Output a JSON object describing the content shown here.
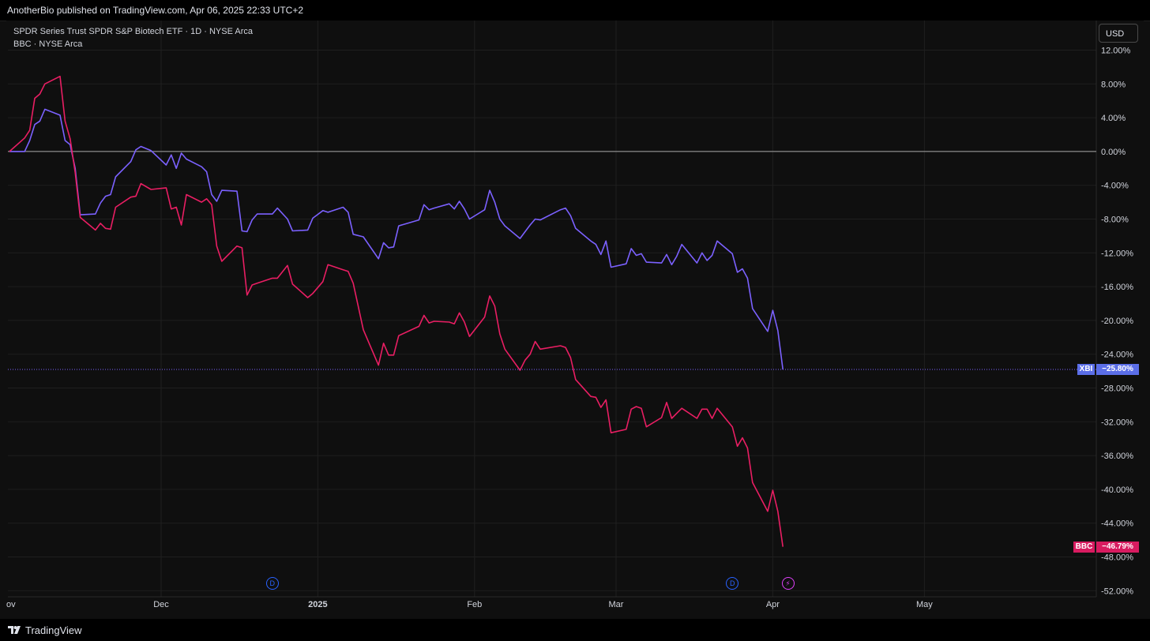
{
  "header": {
    "publisher": "AnotherBio published on TradingView.com, Apr 06, 2025 22:33 UTC+2"
  },
  "legend": {
    "line1": "SPDR Series Trust SPDR S&P Biotech ETF · 1D · NYSE Arca",
    "line2": "BBC · NYSE Arca"
  },
  "currency_button": "USD",
  "footer": {
    "brand": "TradingView"
  },
  "colors": {
    "background": "#0f0f0f",
    "grid": "#1f1f1f",
    "xbi": "#7b61ff",
    "bbc": "#e91e63",
    "zero_line": "#a8a8a8",
    "price_tag_xbi": "#5b6ee8",
    "price_tag_bbc": "#d81b60",
    "dividend_marker": "#2962ff",
    "earnings_marker": "#e040fb"
  },
  "events": [
    {
      "type": "dividend",
      "icon": "dividend-icon",
      "label": "D",
      "date": "2024-12-23"
    },
    {
      "type": "dividend",
      "icon": "dividend-icon",
      "label": "D",
      "date": "2025-03-24"
    },
    {
      "type": "earnings",
      "icon": "lightning-icon",
      "label": "⚡",
      "date": "2025-04-04"
    }
  ],
  "chart_data": {
    "type": "line",
    "y_unit": "%",
    "ylim": [
      -52,
      14
    ],
    "y_ticks": [
      "12.00%",
      "8.00%",
      "4.00%",
      "0.00%",
      "-4.00%",
      "-8.00%",
      "-12.00%",
      "-16.00%",
      "-20.00%",
      "-24.00%",
      "-28.00%",
      "-32.00%",
      "-36.00%",
      "-40.00%",
      "-44.00%",
      "-48.00%",
      "-52.00%"
    ],
    "x_ticks": [
      "ov",
      "Dec",
      "2025",
      "Feb",
      "Mar",
      "Apr",
      "May"
    ],
    "x_tick_dates": [
      "2024-11-01",
      "2024-12-01",
      "2025-01-01",
      "2025-02-01",
      "2025-03-01",
      "2025-04-01",
      "2025-05-01"
    ],
    "xlim": [
      "2024-11-01",
      "2025-05-31"
    ],
    "grid": true,
    "baseline": 0,
    "series": [
      {
        "name": "XBI",
        "last_value_label": "−25.80%",
        "points": [
          [
            "2024-11-01",
            0.0
          ],
          [
            "2024-11-04",
            0.0
          ],
          [
            "2024-11-05",
            1.3
          ],
          [
            "2024-11-06",
            3.2
          ],
          [
            "2024-11-07",
            3.6
          ],
          [
            "2024-11-08",
            5.0
          ],
          [
            "2024-11-11",
            4.3
          ],
          [
            "2024-11-12",
            1.3
          ],
          [
            "2024-11-13",
            0.8
          ],
          [
            "2024-11-14",
            -2.0
          ],
          [
            "2024-11-15",
            -7.5
          ],
          [
            "2024-11-18",
            -7.4
          ],
          [
            "2024-11-19",
            -6.1
          ],
          [
            "2024-11-20",
            -5.3
          ],
          [
            "2024-11-21",
            -5.1
          ],
          [
            "2024-11-22",
            -3.0
          ],
          [
            "2024-11-25",
            -1.2
          ],
          [
            "2024-11-26",
            0.2
          ],
          [
            "2024-11-27",
            0.6
          ],
          [
            "2024-11-29",
            0.1
          ],
          [
            "2024-12-02",
            -1.6
          ],
          [
            "2024-12-03",
            -0.4
          ],
          [
            "2024-12-04",
            -2.0
          ],
          [
            "2024-12-05",
            -0.2
          ],
          [
            "2024-12-06",
            -0.9
          ],
          [
            "2024-12-09",
            -1.8
          ],
          [
            "2024-12-10",
            -2.4
          ],
          [
            "2024-12-11",
            -5.1
          ],
          [
            "2024-12-12",
            -5.9
          ],
          [
            "2024-12-13",
            -4.6
          ],
          [
            "2024-12-16",
            -4.7
          ],
          [
            "2024-12-17",
            -9.4
          ],
          [
            "2024-12-18",
            -9.5
          ],
          [
            "2024-12-19",
            -8.1
          ],
          [
            "2024-12-20",
            -7.4
          ],
          [
            "2024-12-23",
            -7.4
          ],
          [
            "2024-12-24",
            -6.7
          ],
          [
            "2024-12-26",
            -8.0
          ],
          [
            "2024-12-27",
            -9.4
          ],
          [
            "2024-12-30",
            -9.3
          ],
          [
            "2024-12-31",
            -7.9
          ],
          [
            "2025-01-02",
            -7.0
          ],
          [
            "2025-01-03",
            -7.2
          ],
          [
            "2025-01-06",
            -6.6
          ],
          [
            "2025-01-07",
            -7.2
          ],
          [
            "2025-01-08",
            -9.8
          ],
          [
            "2025-01-10",
            -10.1
          ],
          [
            "2025-01-13",
            -12.7
          ],
          [
            "2025-01-14",
            -10.8
          ],
          [
            "2025-01-15",
            -11.4
          ],
          [
            "2025-01-16",
            -11.3
          ],
          [
            "2025-01-17",
            -8.8
          ],
          [
            "2025-01-21",
            -8.1
          ],
          [
            "2025-01-22",
            -6.3
          ],
          [
            "2025-01-23",
            -6.9
          ],
          [
            "2025-01-24",
            -6.7
          ],
          [
            "2025-01-27",
            -6.2
          ],
          [
            "2025-01-28",
            -6.8
          ],
          [
            "2025-01-29",
            -5.9
          ],
          [
            "2025-01-30",
            -6.8
          ],
          [
            "2025-01-31",
            -8.0
          ],
          [
            "2025-02-03",
            -6.9
          ],
          [
            "2025-02-04",
            -4.6
          ],
          [
            "2025-02-05",
            -6.0
          ],
          [
            "2025-02-06",
            -8.0
          ],
          [
            "2025-02-07",
            -8.8
          ],
          [
            "2025-02-10",
            -10.3
          ],
          [
            "2025-02-11",
            -9.5
          ],
          [
            "2025-02-12",
            -8.7
          ],
          [
            "2025-02-13",
            -8.0
          ],
          [
            "2025-02-14",
            -8.1
          ],
          [
            "2025-02-18",
            -6.9
          ],
          [
            "2025-02-19",
            -6.7
          ],
          [
            "2025-02-20",
            -7.6
          ],
          [
            "2025-02-21",
            -9.1
          ],
          [
            "2025-02-24",
            -10.6
          ],
          [
            "2025-02-25",
            -11.0
          ],
          [
            "2025-02-26",
            -12.2
          ],
          [
            "2025-02-27",
            -10.6
          ],
          [
            "2025-02-28",
            -13.7
          ],
          [
            "2025-03-03",
            -13.3
          ],
          [
            "2025-03-04",
            -11.5
          ],
          [
            "2025-03-05",
            -12.3
          ],
          [
            "2025-03-06",
            -12.1
          ],
          [
            "2025-03-07",
            -13.1
          ],
          [
            "2025-03-10",
            -13.2
          ],
          [
            "2025-03-11",
            -12.2
          ],
          [
            "2025-03-12",
            -13.4
          ],
          [
            "2025-03-13",
            -12.4
          ],
          [
            "2025-03-14",
            -11.0
          ],
          [
            "2025-03-17",
            -13.2
          ],
          [
            "2025-03-18",
            -12.0
          ],
          [
            "2025-03-19",
            -12.9
          ],
          [
            "2025-03-20",
            -12.3
          ],
          [
            "2025-03-21",
            -10.6
          ],
          [
            "2025-03-24",
            -12.1
          ],
          [
            "2025-03-25",
            -14.3
          ],
          [
            "2025-03-26",
            -13.9
          ],
          [
            "2025-03-27",
            -15.0
          ],
          [
            "2025-03-28",
            -18.6
          ],
          [
            "2025-03-31",
            -21.3
          ],
          [
            "2025-04-01",
            -18.8
          ],
          [
            "2025-04-02",
            -21.2
          ],
          [
            "2025-04-03",
            -25.8
          ]
        ]
      },
      {
        "name": "BBC",
        "last_value_label": "−46.79%",
        "points": [
          [
            "2024-11-01",
            0.0
          ],
          [
            "2024-11-04",
            1.6
          ],
          [
            "2024-11-05",
            2.5
          ],
          [
            "2024-11-06",
            6.3
          ],
          [
            "2024-11-07",
            6.8
          ],
          [
            "2024-11-08",
            8.0
          ],
          [
            "2024-11-11",
            8.9
          ],
          [
            "2024-11-12",
            3.6
          ],
          [
            "2024-11-13",
            1.5
          ],
          [
            "2024-11-14",
            -2.5
          ],
          [
            "2024-11-15",
            -7.8
          ],
          [
            "2024-11-18",
            -9.3
          ],
          [
            "2024-11-19",
            -8.5
          ],
          [
            "2024-11-20",
            -9.1
          ],
          [
            "2024-11-21",
            -9.2
          ],
          [
            "2024-11-22",
            -6.6
          ],
          [
            "2024-11-25",
            -5.4
          ],
          [
            "2024-11-26",
            -5.3
          ],
          [
            "2024-11-27",
            -3.8
          ],
          [
            "2024-11-29",
            -4.5
          ],
          [
            "2024-12-02",
            -4.3
          ],
          [
            "2024-12-03",
            -6.8
          ],
          [
            "2024-12-04",
            -6.6
          ],
          [
            "2024-12-05",
            -8.7
          ],
          [
            "2024-12-06",
            -5.1
          ],
          [
            "2024-12-09",
            -6.0
          ],
          [
            "2024-12-10",
            -5.6
          ],
          [
            "2024-12-11",
            -6.3
          ],
          [
            "2024-12-12",
            -11.2
          ],
          [
            "2024-12-13",
            -13.0
          ],
          [
            "2024-12-16",
            -11.2
          ],
          [
            "2024-12-17",
            -11.4
          ],
          [
            "2024-12-18",
            -17.0
          ],
          [
            "2024-12-19",
            -15.8
          ],
          [
            "2024-12-20",
            -15.6
          ],
          [
            "2024-12-23",
            -15.0
          ],
          [
            "2024-12-24",
            -15.0
          ],
          [
            "2024-12-26",
            -13.5
          ],
          [
            "2024-12-27",
            -15.7
          ],
          [
            "2024-12-30",
            -17.3
          ],
          [
            "2024-12-31",
            -16.8
          ],
          [
            "2025-01-02",
            -15.4
          ],
          [
            "2025-01-03",
            -13.4
          ],
          [
            "2025-01-06",
            -14.0
          ],
          [
            "2025-01-07",
            -14.2
          ],
          [
            "2025-01-08",
            -15.6
          ],
          [
            "2025-01-10",
            -21.1
          ],
          [
            "2025-01-13",
            -25.3
          ],
          [
            "2025-01-14",
            -22.7
          ],
          [
            "2025-01-15",
            -24.1
          ],
          [
            "2025-01-16",
            -24.1
          ],
          [
            "2025-01-17",
            -21.8
          ],
          [
            "2025-01-21",
            -20.7
          ],
          [
            "2025-01-22",
            -19.4
          ],
          [
            "2025-01-23",
            -20.3
          ],
          [
            "2025-01-24",
            -20.1
          ],
          [
            "2025-01-27",
            -20.2
          ],
          [
            "2025-01-28",
            -20.4
          ],
          [
            "2025-01-29",
            -19.1
          ],
          [
            "2025-01-30",
            -20.2
          ],
          [
            "2025-01-31",
            -21.9
          ],
          [
            "2025-02-03",
            -19.6
          ],
          [
            "2025-02-04",
            -17.1
          ],
          [
            "2025-02-05",
            -18.3
          ],
          [
            "2025-02-06",
            -21.6
          ],
          [
            "2025-02-07",
            -23.4
          ],
          [
            "2025-02-10",
            -25.9
          ],
          [
            "2025-02-11",
            -24.7
          ],
          [
            "2025-02-12",
            -24.0
          ],
          [
            "2025-02-13",
            -22.5
          ],
          [
            "2025-02-14",
            -23.4
          ],
          [
            "2025-02-18",
            -23.0
          ],
          [
            "2025-02-19",
            -23.2
          ],
          [
            "2025-02-20",
            -24.4
          ],
          [
            "2025-02-21",
            -27.0
          ],
          [
            "2025-02-24",
            -29.0
          ],
          [
            "2025-02-25",
            -29.1
          ],
          [
            "2025-02-26",
            -30.3
          ],
          [
            "2025-02-27",
            -29.4
          ],
          [
            "2025-02-28",
            -33.3
          ],
          [
            "2025-03-03",
            -32.9
          ],
          [
            "2025-03-04",
            -30.5
          ],
          [
            "2025-03-05",
            -30.2
          ],
          [
            "2025-03-06",
            -30.4
          ],
          [
            "2025-03-07",
            -32.6
          ],
          [
            "2025-03-10",
            -31.5
          ],
          [
            "2025-03-11",
            -29.7
          ],
          [
            "2025-03-12",
            -31.6
          ],
          [
            "2025-03-13",
            -31.0
          ],
          [
            "2025-03-14",
            -30.4
          ],
          [
            "2025-03-17",
            -31.6
          ],
          [
            "2025-03-18",
            -30.5
          ],
          [
            "2025-03-19",
            -30.5
          ],
          [
            "2025-03-20",
            -31.6
          ],
          [
            "2025-03-21",
            -30.4
          ],
          [
            "2025-03-24",
            -32.6
          ],
          [
            "2025-03-25",
            -34.9
          ],
          [
            "2025-03-26",
            -33.9
          ],
          [
            "2025-03-27",
            -35.1
          ],
          [
            "2025-03-28",
            -39.2
          ],
          [
            "2025-03-31",
            -42.6
          ],
          [
            "2025-04-01",
            -40.1
          ],
          [
            "2025-04-02",
            -42.6
          ],
          [
            "2025-04-03",
            -46.79
          ]
        ]
      }
    ]
  }
}
